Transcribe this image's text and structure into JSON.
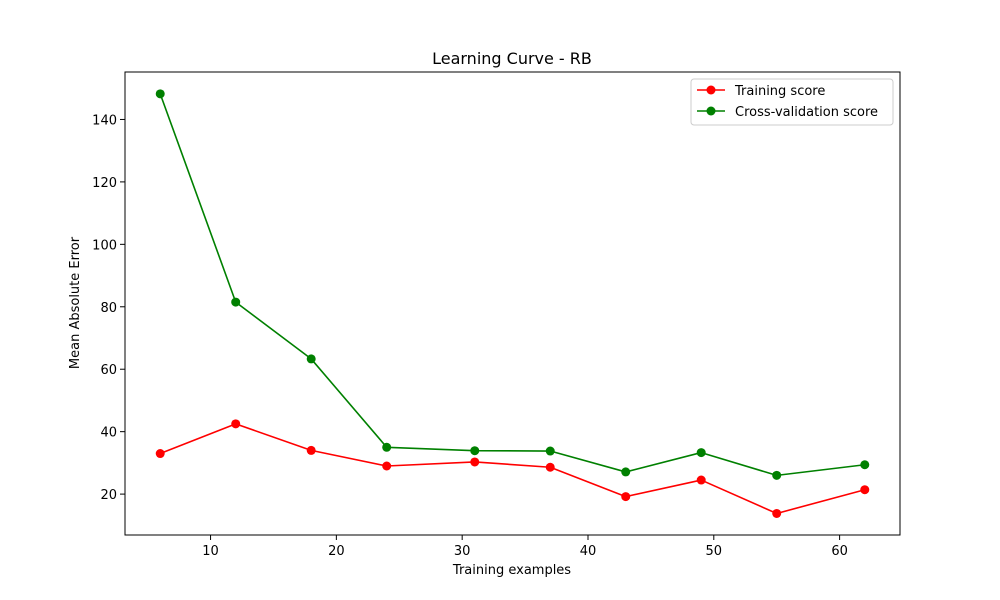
{
  "chart_data": {
    "type": "line",
    "title": "Learning Curve - RB",
    "xlabel": "Training examples",
    "ylabel": "Mean Absolute Error",
    "xlim": [
      3.2,
      64.8
    ],
    "ylim": [
      6.9,
      155.2
    ],
    "xticks": [
      10,
      20,
      30,
      40,
      50,
      60
    ],
    "yticks": [
      20,
      40,
      60,
      80,
      100,
      120,
      140
    ],
    "grid": false,
    "legend_position": "top-right",
    "x": [
      6,
      12,
      18,
      24,
      31,
      37,
      43,
      49,
      55,
      62
    ],
    "series": [
      {
        "name": "Training score",
        "color": "#ff0000",
        "marker": "circle",
        "values": [
          33.0,
          42.5,
          34.0,
          29.0,
          30.3,
          28.6,
          19.2,
          24.5,
          13.8,
          21.4
        ]
      },
      {
        "name": "Cross-validation score",
        "color": "#008000",
        "marker": "circle",
        "values": [
          148.2,
          81.5,
          63.3,
          35.0,
          33.9,
          33.8,
          27.1,
          33.3,
          26.0,
          29.4
        ]
      }
    ]
  }
}
